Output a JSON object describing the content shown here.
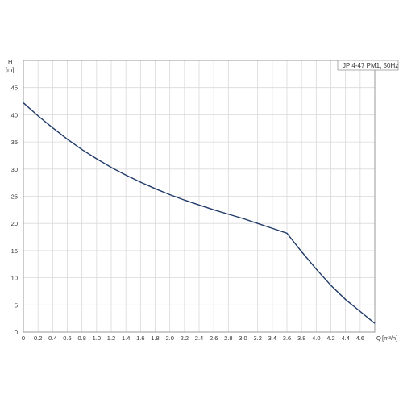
{
  "chart_data": {
    "type": "line",
    "title": "",
    "xlabel": "Q",
    "xunit": "[m³/h]",
    "ylabel": "H",
    "yunit": "[m]",
    "xlim": [
      0,
      4.8
    ],
    "ylim": [
      0,
      50
    ],
    "xticks": [
      "0",
      "0.2",
      "0.4",
      "0.6",
      "0.8",
      "1.0",
      "1.2",
      "1.4",
      "1.6",
      "1.8",
      "2.0",
      "2.2",
      "2.4",
      "2.6",
      "2.8",
      "3.0",
      "3.2",
      "3.4",
      "3.6",
      "3.8",
      "4.0",
      "4.2",
      "4.4",
      "4.6"
    ],
    "yticks": [
      "0",
      "5",
      "10",
      "15",
      "20",
      "25",
      "30",
      "35",
      "40",
      "45"
    ],
    "grid": true,
    "legend_position": "top-right",
    "series": [
      {
        "name": "JP 4-47 PM1, 50Hz",
        "color": "#1f3a68",
        "x": [
          0.0,
          0.2,
          0.4,
          0.6,
          0.8,
          1.0,
          1.2,
          1.4,
          1.6,
          1.8,
          2.0,
          2.2,
          2.4,
          2.6,
          2.8,
          3.0,
          3.2,
          3.4,
          3.6,
          3.8,
          4.0,
          4.2,
          4.4,
          4.6,
          4.8
        ],
        "y": [
          42.2,
          39.8,
          37.6,
          35.5,
          33.6,
          31.9,
          30.3,
          28.9,
          27.6,
          26.4,
          25.3,
          24.3,
          23.4,
          22.5,
          21.7,
          20.9,
          20.0,
          19.1,
          18.2,
          14.8,
          11.6,
          8.6,
          6.0,
          3.8,
          1.6
        ]
      }
    ]
  }
}
